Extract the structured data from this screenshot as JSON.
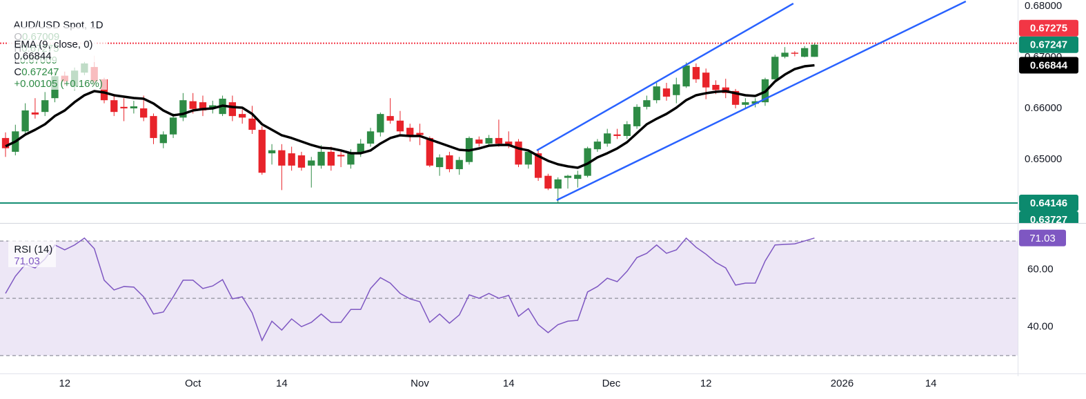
{
  "chart_data": [
    {
      "type": "candlestick",
      "title": "AUD/USD Spot, 1D",
      "ohlc_labels": [
        "O",
        "H",
        "L",
        "C"
      ],
      "change": "+0.00105 (+0.16%)",
      "up_color": "#2e8b45",
      "down_color": "#e8232a",
      "candles": [
        [
          0.6542,
          0.6553,
          0.6505,
          0.6522
        ],
        [
          0.6515,
          0.6568,
          0.6508,
          0.6555
        ],
        [
          0.6555,
          0.661,
          0.6548,
          0.6596
        ],
        [
          0.6592,
          0.662,
          0.658,
          0.6588
        ],
        [
          0.6593,
          0.6632,
          0.6585,
          0.6616
        ],
        [
          0.662,
          0.6672,
          0.6612,
          0.6663
        ],
        [
          0.6664,
          0.6672,
          0.6645,
          0.6653
        ],
        [
          0.6643,
          0.668,
          0.6635,
          0.6674
        ],
        [
          0.667,
          0.6692,
          0.6665,
          0.6688
        ],
        [
          0.6681,
          0.6703,
          0.6645,
          0.6653
        ],
        [
          0.6657,
          0.666,
          0.661,
          0.6616
        ],
        [
          0.6616,
          0.6628,
          0.6585,
          0.6593
        ],
        [
          0.6603,
          0.662,
          0.6575,
          0.66
        ],
        [
          0.66,
          0.6615,
          0.659,
          0.6604
        ],
        [
          0.66,
          0.6625,
          0.6575,
          0.6582
        ],
        [
          0.6585,
          0.659,
          0.653,
          0.6542
        ],
        [
          0.6532,
          0.6555,
          0.6522,
          0.6549
        ],
        [
          0.6549,
          0.659,
          0.6542,
          0.6582
        ],
        [
          0.6582,
          0.663,
          0.6575,
          0.6616
        ],
        [
          0.6614,
          0.663,
          0.659,
          0.6599
        ],
        [
          0.6612,
          0.6625,
          0.6585,
          0.6596
        ],
        [
          0.66,
          0.6615,
          0.659,
          0.6606
        ],
        [
          0.6589,
          0.6625,
          0.6585,
          0.6619
        ],
        [
          0.6612,
          0.6625,
          0.6575,
          0.6585
        ],
        [
          0.6589,
          0.6598,
          0.657,
          0.6582
        ],
        [
          0.658,
          0.6605,
          0.655,
          0.6558
        ],
        [
          0.6558,
          0.6565,
          0.647,
          0.6474
        ],
        [
          0.6512,
          0.653,
          0.649,
          0.6518
        ],
        [
          0.6518,
          0.653,
          0.644,
          0.6488
        ],
        [
          0.6512,
          0.6525,
          0.6478,
          0.6488
        ],
        [
          0.6508,
          0.6515,
          0.6478,
          0.6484
        ],
        [
          0.6488,
          0.6505,
          0.6445,
          0.6498
        ],
        [
          0.6488,
          0.6528,
          0.6482,
          0.6515
        ],
        [
          0.6515,
          0.6525,
          0.6478,
          0.6488
        ],
        [
          0.6509,
          0.6515,
          0.6485,
          0.6506
        ],
        [
          0.649,
          0.652,
          0.6482,
          0.6512
        ],
        [
          0.6512,
          0.654,
          0.6505,
          0.6531
        ],
        [
          0.6531,
          0.6562,
          0.6525,
          0.6555
        ],
        [
          0.6553,
          0.6592,
          0.6545,
          0.6589
        ],
        [
          0.6585,
          0.662,
          0.657,
          0.6576
        ],
        [
          0.6576,
          0.6595,
          0.655,
          0.6555
        ],
        [
          0.6562,
          0.657,
          0.6535,
          0.6545
        ],
        [
          0.6552,
          0.657,
          0.6528,
          0.6548
        ],
        [
          0.6542,
          0.6545,
          0.6485,
          0.6488
        ],
        [
          0.6485,
          0.651,
          0.6468,
          0.6504
        ],
        [
          0.6508,
          0.6515,
          0.6475,
          0.6481
        ],
        [
          0.6481,
          0.6505,
          0.647,
          0.6499
        ],
        [
          0.6495,
          0.6545,
          0.649,
          0.6542
        ],
        [
          0.6539,
          0.6545,
          0.6525,
          0.6531
        ],
        [
          0.6531,
          0.6548,
          0.6525,
          0.6542
        ],
        [
          0.6542,
          0.6578,
          0.6525,
          0.6531
        ],
        [
          0.6535,
          0.6555,
          0.6522,
          0.6528
        ],
        [
          0.6535,
          0.654,
          0.6485,
          0.649
        ],
        [
          0.649,
          0.652,
          0.6482,
          0.6515
        ],
        [
          0.6512,
          0.6518,
          0.6458,
          0.6464
        ],
        [
          0.6468,
          0.6472,
          0.644,
          0.6443
        ],
        [
          0.6443,
          0.6465,
          0.6415,
          0.6461
        ],
        [
          0.6464,
          0.647,
          0.6443,
          0.6468
        ],
        [
          0.6462,
          0.6478,
          0.6445,
          0.647
        ],
        [
          0.6468,
          0.6525,
          0.6465,
          0.6522
        ],
        [
          0.652,
          0.654,
          0.6515,
          0.6535
        ],
        [
          0.6531,
          0.656,
          0.6525,
          0.6551
        ],
        [
          0.6549,
          0.656,
          0.654,
          0.6546
        ],
        [
          0.6546,
          0.6575,
          0.654,
          0.6569
        ],
        [
          0.6565,
          0.6608,
          0.656,
          0.6603
        ],
        [
          0.6603,
          0.6625,
          0.6598,
          0.6616
        ],
        [
          0.6616,
          0.665,
          0.661,
          0.6643
        ],
        [
          0.6639,
          0.665,
          0.6615,
          0.6623
        ],
        [
          0.6626,
          0.666,
          0.661,
          0.6647
        ],
        [
          0.6643,
          0.669,
          0.664,
          0.6684
        ],
        [
          0.6681,
          0.6688,
          0.665,
          0.6657
        ],
        [
          0.667,
          0.6678,
          0.6618,
          0.6641
        ],
        [
          0.6646,
          0.6655,
          0.6628,
          0.6636
        ],
        [
          0.6641,
          0.6658,
          0.662,
          0.663
        ],
        [
          0.6634,
          0.6638,
          0.66,
          0.6607
        ],
        [
          0.6607,
          0.662,
          0.66,
          0.6612
        ],
        [
          0.6609,
          0.662,
          0.6602,
          0.6614
        ],
        [
          0.6612,
          0.666,
          0.6605,
          0.6657
        ],
        [
          0.6657,
          0.6705,
          0.6652,
          0.6701
        ],
        [
          0.6701,
          0.672,
          0.6698,
          0.6709
        ],
        [
          0.6709,
          0.6712,
          0.6702,
          0.6707
        ],
        [
          0.6701,
          0.6722,
          0.67,
          0.6718
        ],
        [
          0.67009,
          0.67275,
          0.67009,
          0.67247
        ]
      ],
      "series": [
        {
          "name": "EMA (9, close, 0)",
          "color": "#000000",
          "values": [
            0.65257,
            0.65351,
            0.65486,
            0.65581,
            0.65689,
            0.65851,
            0.65959,
            0.66122,
            0.66257,
            0.66338,
            0.66311,
            0.66257,
            0.6623,
            0.66203,
            0.66189,
            0.66095,
            0.65959,
            0.65865,
            0.65892,
            0.65959,
            0.65986,
            0.66,
            0.66054,
            0.66027,
            0.66014,
            0.65892,
            0.65689,
            0.65581,
            0.65473,
            0.65419,
            0.65351,
            0.65284,
            0.6523,
            0.65216,
            0.65176,
            0.65122,
            0.65122,
            0.65176,
            0.65311,
            0.65419,
            0.65473,
            0.65459,
            0.65459,
            0.65392,
            0.65324,
            0.65257,
            0.65189,
            0.65176,
            0.65216,
            0.6527,
            0.65284,
            0.65284,
            0.65216,
            0.65176,
            0.65068,
            0.64973,
            0.64905,
            0.64865,
            0.64838,
            0.64919,
            0.65041,
            0.65122,
            0.65216,
            0.65338,
            0.65514,
            0.65689,
            0.65797,
            0.65892,
            0.66014,
            0.66162,
            0.66257,
            0.66297,
            0.66324,
            0.66338,
            0.66297,
            0.66257,
            0.66243,
            0.66324,
            0.66527,
            0.66662,
            0.6677,
            0.66824,
            0.66844
          ]
        }
      ],
      "hlines": [
        {
          "value": 0.67275,
          "color": "#f23645",
          "dash": true
        },
        {
          "value": 0.64146,
          "color": "#0c8a6e",
          "dash": false
        }
      ],
      "trend_lines": [
        {
          "color": "#2962ff",
          "x": [
            53.85,
            79.86
          ],
          "y": [
            0.65176,
            0.68054
          ]
        },
        {
          "color": "#2962ff",
          "x": [
            55.87,
            97.34
          ],
          "y": [
            0.64203,
            0.68095
          ]
        }
      ],
      "badges": [
        {
          "value": 0.67275,
          "color": "#f23645"
        },
        {
          "value": 0.67247,
          "color": "#0c8a6e"
        },
        {
          "value": 0.66844,
          "color": "#000000"
        },
        {
          "value": 0.64146,
          "color": "#0c8a6e"
        },
        {
          "value": 0.63727,
          "color": "#0c8a6e"
        }
      ],
      "ylim": [
        0.6377,
        0.68122
      ],
      "yticks": [
        {
          "value": 0.68,
          "label": "0.68000"
        },
        {
          "value": 0.67,
          "label": "0.67000"
        },
        {
          "value": 0.66,
          "label": "0.66000"
        },
        {
          "value": 0.65,
          "label": "0.65000"
        }
      ],
      "xlim": [
        -0.56,
        102.6
      ],
      "xticks": [
        {
          "value": 6,
          "label": "12"
        },
        {
          "value": 19,
          "label": "Oct"
        },
        {
          "value": 28,
          "label": "14"
        },
        {
          "value": 42,
          "label": "Nov"
        },
        {
          "value": 51,
          "label": "14"
        },
        {
          "value": 61.4,
          "label": "Dec"
        },
        {
          "value": 71,
          "label": "12"
        },
        {
          "value": 84.8,
          "label": "2026"
        },
        {
          "value": 93.8,
          "label": "14"
        }
      ]
    },
    {
      "type": "line",
      "series": [
        {
          "name": "RSI (14)",
          "color": "#7e57c2",
          "values": [
            51.7,
            57.7,
            61.8,
            60.6,
            63.7,
            68.6,
            66.9,
            68.6,
            71.0,
            67.3,
            56.3,
            52.9,
            54.1,
            53.9,
            50.5,
            44.5,
            45.2,
            50.5,
            56.3,
            56.3,
            53.4,
            54.3,
            56.5,
            49.8,
            50.5,
            44.9,
            35.3,
            42.0,
            38.9,
            42.8,
            40.1,
            41.6,
            44.5,
            41.6,
            41.6,
            46.1,
            46.1,
            53.4,
            57.2,
            55.3,
            51.7,
            49.8,
            48.8,
            41.6,
            44.5,
            41.3,
            44.2,
            51.2,
            50.0,
            51.7,
            50.0,
            51.0,
            43.7,
            46.4,
            40.8,
            38.0,
            40.8,
            42.0,
            42.3,
            52.2,
            54.1,
            57.0,
            55.8,
            59.4,
            64.2,
            65.7,
            68.6,
            65.7,
            66.9,
            71.0,
            67.8,
            65.4,
            62.5,
            60.6,
            54.6,
            55.3,
            55.3,
            63.0,
            68.6,
            68.8,
            69.0,
            70.0,
            71.03
          ]
        }
      ],
      "levels": [
        70,
        50,
        30
      ],
      "band_color": "#ede7f6",
      "ylim": [
        24,
        75.8
      ],
      "yticks": [
        {
          "value": 60,
          "label": "60.00"
        },
        {
          "value": 40,
          "label": "40.00"
        }
      ]
    }
  ]
}
